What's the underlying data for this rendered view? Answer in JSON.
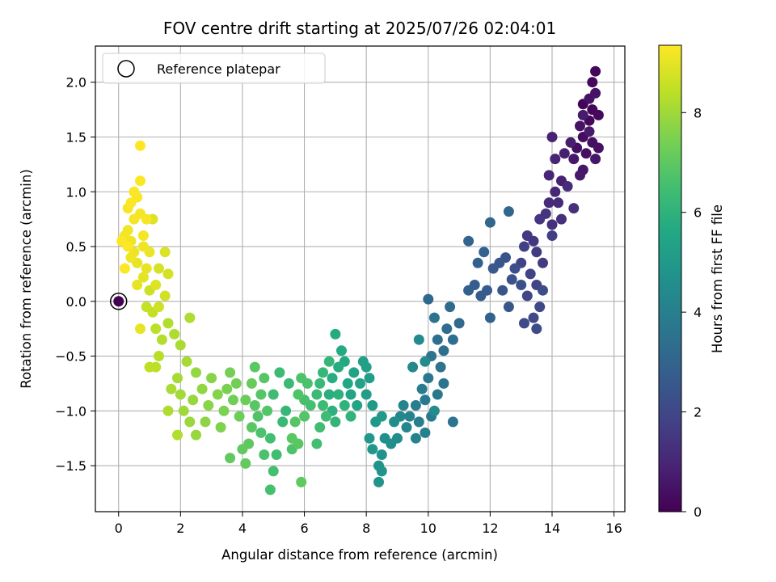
{
  "chart_data": {
    "type": "scatter",
    "title": "FOV centre drift starting at 2025/07/26 02:04:01",
    "xlabel": "Angular distance from reference (arcmin)",
    "ylabel": "Rotation from reference (arcmin)",
    "xlim": [
      -0.75,
      16.35
    ],
    "ylim": [
      -1.92,
      2.33
    ],
    "xticks": [
      0,
      2,
      4,
      6,
      8,
      10,
      12,
      14,
      16
    ],
    "yticks": [
      -1.5,
      -1.0,
      -0.5,
      0.0,
      0.5,
      1.0,
      1.5,
      2.0
    ],
    "xtick_labels": [
      "0",
      "2",
      "4",
      "6",
      "8",
      "10",
      "12",
      "14",
      "16"
    ],
    "ytick_labels": [
      "−1.5",
      "−1.0",
      "−0.5",
      "0.0",
      "0.5",
      "1.0",
      "1.5",
      "2.0"
    ],
    "grid": true,
    "legend": {
      "placement": "top-left",
      "entries": [
        "Reference platepar"
      ]
    },
    "colormap": "viridis",
    "colorbar": {
      "label": "Hours from first FF file",
      "range": [
        0,
        9.35
      ],
      "ticks": [
        0,
        2,
        4,
        6,
        8
      ],
      "tick_labels": [
        "0",
        "2",
        "4",
        "6",
        "8"
      ]
    },
    "reference_point": {
      "x": 0.0,
      "y": 0.0,
      "hours": 0.0
    },
    "series": [
      {
        "points": [
          [
            15.0,
            1.8,
            0.1
          ],
          [
            15.3,
            1.75,
            0.12
          ],
          [
            15.4,
            2.1,
            0.15
          ],
          [
            15.3,
            2.0,
            0.18
          ],
          [
            15.2,
            1.65,
            0.2
          ],
          [
            15.5,
            1.7,
            0.25
          ],
          [
            15.0,
            1.5,
            0.3
          ],
          [
            14.8,
            1.4,
            0.35
          ],
          [
            15.1,
            1.35,
            0.38
          ],
          [
            15.3,
            1.45,
            0.4
          ],
          [
            15.5,
            1.4,
            0.42
          ],
          [
            14.9,
            1.6,
            0.45
          ],
          [
            15.2,
            1.85,
            0.48
          ],
          [
            15.4,
            1.9,
            0.5
          ],
          [
            15.0,
            1.2,
            0.55
          ],
          [
            15.4,
            1.3,
            0.58
          ],
          [
            14.7,
            1.3,
            0.6
          ],
          [
            14.9,
            1.15,
            0.65
          ],
          [
            15.2,
            1.55,
            0.68
          ],
          [
            15.0,
            1.7,
            0.7
          ],
          [
            14.6,
            1.45,
            0.75
          ],
          [
            14.4,
            1.35,
            0.8
          ],
          [
            14.3,
            1.1,
            0.85
          ],
          [
            14.0,
            1.5,
            0.9
          ],
          [
            14.1,
            1.3,
            0.95
          ],
          [
            13.9,
            1.15,
            1.0
          ],
          [
            14.1,
            1.0,
            1.05
          ],
          [
            13.9,
            0.9,
            1.1
          ],
          [
            14.2,
            0.9,
            1.15
          ],
          [
            14.5,
            1.05,
            1.2
          ],
          [
            14.7,
            0.85,
            1.25
          ],
          [
            14.3,
            0.75,
            1.3
          ],
          [
            14.0,
            0.7,
            1.35
          ],
          [
            13.8,
            0.8,
            1.4
          ],
          [
            13.6,
            0.75,
            1.45
          ],
          [
            13.4,
            0.55,
            1.5
          ],
          [
            13.2,
            0.6,
            1.55
          ],
          [
            13.5,
            0.45,
            1.6
          ],
          [
            13.7,
            0.35,
            1.65
          ],
          [
            14.0,
            0.6,
            1.7
          ],
          [
            13.1,
            0.5,
            1.75
          ],
          [
            13.0,
            0.35,
            1.8
          ],
          [
            13.3,
            0.25,
            1.85
          ],
          [
            13.5,
            0.15,
            1.9
          ],
          [
            13.2,
            0.05,
            1.95
          ],
          [
            13.6,
            -0.05,
            2.0
          ],
          [
            13.4,
            -0.15,
            2.05
          ],
          [
            13.1,
            -0.2,
            2.1
          ],
          [
            13.5,
            -0.25,
            2.15
          ],
          [
            13.7,
            0.1,
            2.2
          ],
          [
            13.0,
            0.15,
            2.25
          ],
          [
            12.8,
            0.3,
            2.3
          ],
          [
            12.7,
            0.2,
            2.35
          ],
          [
            12.5,
            0.4,
            2.4
          ],
          [
            12.4,
            0.1,
            2.45
          ],
          [
            12.6,
            -0.05,
            2.5
          ],
          [
            12.3,
            0.35,
            2.55
          ],
          [
            12.1,
            0.3,
            2.6
          ],
          [
            11.9,
            0.1,
            2.65
          ],
          [
            11.7,
            0.05,
            2.7
          ],
          [
            11.5,
            0.15,
            2.75
          ],
          [
            11.3,
            0.1,
            2.8
          ],
          [
            11.6,
            0.35,
            2.85
          ],
          [
            11.8,
            0.45,
            2.9
          ],
          [
            12.0,
            -0.15,
            2.95
          ],
          [
            11.3,
            0.55,
            3.0
          ],
          [
            12.0,
            0.72,
            3.05
          ],
          [
            12.6,
            0.82,
            3.1
          ],
          [
            11.0,
            -0.2,
            3.2
          ],
          [
            10.7,
            -0.05,
            3.25
          ],
          [
            10.6,
            -0.25,
            3.3
          ],
          [
            10.8,
            -0.35,
            3.35
          ],
          [
            10.5,
            -0.45,
            3.4
          ],
          [
            10.3,
            -0.35,
            3.45
          ],
          [
            10.4,
            -0.6,
            3.5
          ],
          [
            10.2,
            -0.15,
            3.55
          ],
          [
            10.1,
            -0.5,
            3.6
          ],
          [
            10.5,
            -0.75,
            3.65
          ],
          [
            10.3,
            -0.85,
            3.7
          ],
          [
            10.0,
            -0.7,
            3.75
          ],
          [
            9.9,
            -0.9,
            3.8
          ],
          [
            10.1,
            -1.05,
            3.85
          ],
          [
            9.8,
            -0.8,
            3.9
          ],
          [
            9.6,
            -0.95,
            3.95
          ],
          [
            9.7,
            -1.1,
            4.0
          ],
          [
            9.9,
            -1.2,
            4.05
          ],
          [
            9.6,
            -1.25,
            4.1
          ],
          [
            9.4,
            -1.05,
            4.15
          ],
          [
            9.2,
            -0.95,
            4.2
          ],
          [
            9.3,
            -1.15,
            4.25
          ],
          [
            9.1,
            -1.05,
            4.3
          ],
          [
            9.5,
            -0.6,
            4.35
          ],
          [
            9.7,
            -0.35,
            4.4
          ],
          [
            9.9,
            -0.55,
            4.45
          ],
          [
            10.2,
            -1.0,
            4.5
          ],
          [
            10.0,
            0.02,
            3.15
          ],
          [
            10.8,
            -1.1,
            3.6
          ],
          [
            9.0,
            -1.25,
            4.5
          ],
          [
            8.9,
            -1.1,
            4.55
          ],
          [
            8.8,
            -1.3,
            4.6
          ],
          [
            8.6,
            -1.25,
            4.65
          ],
          [
            8.5,
            -1.4,
            4.7
          ],
          [
            8.4,
            -1.5,
            4.75
          ],
          [
            8.5,
            -1.55,
            4.8
          ],
          [
            8.4,
            -1.65,
            4.85
          ],
          [
            8.2,
            -1.35,
            4.9
          ],
          [
            8.1,
            -1.25,
            4.95
          ],
          [
            8.3,
            -1.1,
            5.0
          ],
          [
            8.5,
            -1.05,
            5.05
          ],
          [
            8.2,
            -0.95,
            5.1
          ],
          [
            8.0,
            -0.85,
            5.15
          ],
          [
            8.1,
            -0.7,
            5.2
          ],
          [
            7.9,
            -0.55,
            5.25
          ],
          [
            8.0,
            -0.6,
            5.3
          ],
          [
            7.8,
            -0.75,
            5.35
          ],
          [
            7.6,
            -0.65,
            5.4
          ],
          [
            7.5,
            -0.85,
            5.45
          ],
          [
            7.7,
            -0.95,
            5.5
          ],
          [
            7.4,
            -0.75,
            5.55
          ],
          [
            7.3,
            -0.55,
            5.6
          ],
          [
            7.2,
            -0.45,
            5.65
          ],
          [
            7.0,
            -0.3,
            5.7
          ],
          [
            7.1,
            -0.6,
            5.75
          ],
          [
            6.9,
            -0.7,
            5.8
          ],
          [
            6.8,
            -0.85,
            5.85
          ],
          [
            6.9,
            -1.0,
            5.9
          ],
          [
            7.1,
            -0.85,
            5.95
          ],
          [
            7.3,
            -0.95,
            6.0
          ],
          [
            7.5,
            -1.05,
            6.05
          ],
          [
            7.0,
            -1.1,
            6.1
          ],
          [
            6.8,
            -0.55,
            6.15
          ],
          [
            6.6,
            -0.65,
            6.2
          ],
          [
            6.5,
            -0.75,
            6.25
          ],
          [
            6.4,
            -0.85,
            6.3
          ],
          [
            6.6,
            -0.95,
            6.35
          ],
          [
            6.7,
            -1.05,
            6.4
          ],
          [
            6.5,
            -1.15,
            6.45
          ],
          [
            6.4,
            -1.3,
            6.5
          ],
          [
            6.2,
            -0.95,
            6.55
          ],
          [
            6.0,
            -0.9,
            6.6
          ],
          [
            6.1,
            -0.75,
            6.65
          ],
          [
            5.9,
            -0.7,
            6.7
          ],
          [
            5.8,
            -0.85,
            6.75
          ],
          [
            6.0,
            -1.05,
            6.8
          ],
          [
            5.7,
            -1.1,
            6.85
          ],
          [
            5.8,
            -1.3,
            6.9
          ],
          [
            5.6,
            -1.25,
            6.95
          ],
          [
            5.9,
            -1.65,
            7.0
          ],
          [
            5.4,
            -1.0,
            6.2
          ],
          [
            5.3,
            -1.1,
            6.25
          ],
          [
            5.5,
            -0.75,
            6.3
          ],
          [
            5.2,
            -0.65,
            6.35
          ],
          [
            5.0,
            -0.85,
            6.4
          ],
          [
            5.1,
            -1.4,
            6.45
          ],
          [
            4.9,
            -1.25,
            6.5
          ],
          [
            5.0,
            -1.55,
            6.55
          ],
          [
            4.9,
            -1.72,
            6.6
          ],
          [
            4.7,
            -1.4,
            6.65
          ],
          [
            4.6,
            -1.2,
            6.7
          ],
          [
            4.5,
            -1.05,
            6.75
          ],
          [
            4.8,
            -1.0,
            6.8
          ],
          [
            4.6,
            -0.85,
            6.85
          ],
          [
            4.4,
            -0.95,
            6.9
          ],
          [
            4.3,
            -1.15,
            6.95
          ],
          [
            4.2,
            -1.3,
            7.0
          ],
          [
            4.0,
            -1.35,
            7.05
          ],
          [
            4.1,
            -1.48,
            7.1
          ],
          [
            4.3,
            -0.75,
            7.15
          ],
          [
            4.1,
            -0.9,
            7.2
          ],
          [
            3.9,
            -1.05,
            7.25
          ],
          [
            3.7,
            -0.9,
            7.3
          ],
          [
            3.8,
            -0.75,
            7.35
          ],
          [
            3.6,
            -0.65,
            7.4
          ],
          [
            3.5,
            -0.8,
            7.45
          ],
          [
            3.4,
            -1.0,
            7.5
          ],
          [
            3.3,
            -1.15,
            7.55
          ],
          [
            3.2,
            -0.85,
            7.6
          ],
          [
            3.0,
            -0.7,
            7.65
          ],
          [
            2.9,
            -0.95,
            7.7
          ],
          [
            2.8,
            -1.1,
            7.75
          ],
          [
            2.7,
            -0.8,
            7.8
          ],
          [
            2.5,
            -0.65,
            7.85
          ],
          [
            2.4,
            -0.9,
            7.9
          ],
          [
            2.3,
            -1.1,
            7.95
          ],
          [
            2.1,
            -1.0,
            8.0
          ],
          [
            2.0,
            -0.85,
            8.05
          ],
          [
            1.9,
            -0.7,
            8.1
          ],
          [
            1.7,
            -0.8,
            8.15
          ],
          [
            1.6,
            -1.0,
            8.2
          ],
          [
            1.9,
            -1.22,
            8.25
          ],
          [
            3.6,
            -1.43,
            7.05
          ],
          [
            2.5,
            -1.22,
            7.9
          ],
          [
            4.4,
            -0.6,
            6.95
          ],
          [
            4.7,
            -0.7,
            6.85
          ],
          [
            5.6,
            -1.35,
            6.7
          ],
          [
            2.2,
            -0.55,
            8.1
          ],
          [
            2.0,
            -0.4,
            8.15
          ],
          [
            1.8,
            -0.3,
            8.2
          ],
          [
            1.6,
            -0.2,
            8.25
          ],
          [
            1.4,
            -0.35,
            8.3
          ],
          [
            1.3,
            -0.5,
            8.35
          ],
          [
            1.2,
            -0.25,
            8.4
          ],
          [
            1.0,
            -0.6,
            8.45
          ],
          [
            1.1,
            -0.1,
            8.5
          ],
          [
            0.9,
            -0.05,
            8.55
          ],
          [
            1.0,
            0.1,
            8.6
          ],
          [
            1.3,
            -0.05,
            8.65
          ],
          [
            1.5,
            0.05,
            8.7
          ],
          [
            1.6,
            0.25,
            8.75
          ],
          [
            1.3,
            0.3,
            8.8
          ],
          [
            1.5,
            0.45,
            8.85
          ],
          [
            1.2,
            0.15,
            8.9
          ],
          [
            0.8,
            0.22,
            8.95
          ],
          [
            0.7,
            -0.25,
            9.0
          ],
          [
            2.3,
            -0.15,
            8.2
          ],
          [
            0.6,
            0.35,
            9.05
          ],
          [
            0.5,
            0.45,
            9.1
          ],
          [
            0.4,
            0.55,
            9.15
          ],
          [
            0.3,
            0.65,
            9.18
          ],
          [
            0.2,
            0.6,
            9.2
          ],
          [
            0.5,
            0.75,
            9.22
          ],
          [
            0.7,
            0.8,
            9.24
          ],
          [
            0.9,
            0.75,
            9.26
          ],
          [
            0.6,
            0.95,
            9.28
          ],
          [
            0.7,
            1.1,
            9.3
          ],
          [
            0.4,
            0.9,
            9.31
          ],
          [
            0.3,
            0.5,
            9.32
          ],
          [
            0.2,
            0.3,
            9.33
          ],
          [
            0.1,
            0.55,
            9.34
          ],
          [
            0.7,
            1.42,
            9.35
          ],
          [
            0.5,
            1.0,
            9.3
          ],
          [
            0.3,
            0.85,
            9.28
          ],
          [
            0.8,
            0.6,
            9.2
          ],
          [
            1.0,
            0.45,
            9.1
          ],
          [
            0.6,
            0.15,
            9.0
          ],
          [
            1.1,
            0.75,
            8.9
          ],
          [
            0.9,
            0.3,
            9.05
          ],
          [
            0.4,
            0.4,
            9.15
          ],
          [
            0.8,
            0.5,
            9.12
          ],
          [
            1.2,
            -0.6,
            8.4
          ]
        ]
      }
    ]
  }
}
